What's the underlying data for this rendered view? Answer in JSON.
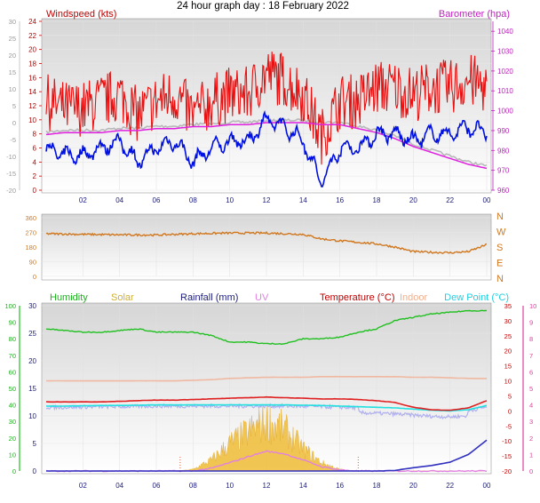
{
  "title": "24 hour graph day : 18 February 2022",
  "colors": {
    "wind": "#e81010",
    "gust": "#e81010",
    "wind_avg": "#0010e0",
    "barometer": "#e020e0",
    "bar_raw": "#b8b8b8",
    "direction": "#d07820",
    "humidity": "#20c020",
    "solar": "#f0c040",
    "rainfall": "#3030c0",
    "uv": "#e080e0",
    "temperature": "#e02020",
    "indoor": "#f0b8a0",
    "dewpoint": "#20e0e0",
    "grey_series": "#b0b0f0",
    "left_axis_green": "#20c020",
    "right_axis_pink": "#e040a0",
    "direction_axis": "#d07820"
  },
  "panel1": {
    "left_label": "Windspeed (kts)",
    "right_label": "Barometer (hpa)",
    "outer_left_ticks": [
      "30",
      "25",
      "20",
      "15",
      "10",
      "5",
      "0",
      "-5",
      "-10",
      "-15",
      "-20"
    ],
    "left_ticks": [
      "24",
      "22",
      "20",
      "18",
      "16",
      "14",
      "12",
      "10",
      "8",
      "6",
      "4",
      "2",
      "0"
    ],
    "right_ticks": [
      "1040",
      "1030",
      "1020",
      "1010",
      "1000",
      "990",
      "980",
      "970",
      "960"
    ],
    "x_ticks": [
      "02",
      "04",
      "06",
      "08",
      "10",
      "12",
      "14",
      "16",
      "18",
      "20",
      "22",
      "00"
    ]
  },
  "panel2": {
    "left_ticks": [
      "360",
      "270",
      "180",
      "90",
      "0"
    ],
    "right_ticks": [
      "N",
      "W",
      "S",
      "E",
      "N"
    ],
    "x_ticks": []
  },
  "panel3": {
    "legend": {
      "humidity": "Humidity",
      "solar": "Solar",
      "rainfall": "Rainfall (mm)",
      "uv": "UV",
      "temperature": "Temperature (°C)",
      "indoor": "Indoor",
      "dewpoint": "Dew Point (°C)"
    },
    "outer_left_ticks": [
      "100",
      "90",
      "80",
      "70",
      "60",
      "50",
      "40",
      "30",
      "20",
      "10",
      "0"
    ],
    "left_ticks": [
      "30",
      "25",
      "20",
      "15",
      "10",
      "5",
      "0"
    ],
    "right_ticks": [
      "35",
      "30",
      "25",
      "20",
      "15",
      "10",
      "5",
      "0",
      "-5",
      "-10",
      "-15",
      "-20"
    ],
    "far_right_ticks": [
      "10",
      "9",
      "8",
      "7",
      "6",
      "5",
      "4",
      "3",
      "2",
      "1",
      "0"
    ],
    "x_ticks": [
      "02",
      "04",
      "06",
      "08",
      "10",
      "12",
      "14",
      "16",
      "18",
      "20",
      "22",
      "00"
    ]
  },
  "chart_data": [
    {
      "type": "line",
      "x_hours": [
        0,
        1,
        2,
        3,
        4,
        5,
        6,
        7,
        8,
        9,
        10,
        11,
        12,
        13,
        14,
        15,
        16,
        17,
        18,
        19,
        20,
        21,
        22,
        23,
        24
      ],
      "series": [
        {
          "name": "Windspeed",
          "unit": "kts",
          "values": [
            9,
            8,
            8,
            9,
            10,
            7,
            9,
            10,
            7,
            9,
            10,
            10,
            13,
            12,
            10,
            4,
            9,
            9,
            11,
            11,
            10,
            11,
            11,
            12,
            11
          ]
        },
        {
          "name": "Barometer",
          "unit": "hpa",
          "values": [
            988,
            989,
            989,
            989,
            990,
            990,
            991,
            991,
            992,
            992,
            993,
            993,
            994,
            994,
            994,
            993,
            993,
            991,
            989,
            986,
            982,
            979,
            976,
            973,
            971
          ]
        }
      ],
      "xlim": [
        0,
        24
      ],
      "left_ylim": [
        0,
        24
      ],
      "right_ylim": [
        960,
        1045
      ]
    },
    {
      "type": "line",
      "x_hours": [
        0,
        2,
        4,
        6,
        8,
        10,
        12,
        14,
        15,
        16,
        18,
        19,
        20,
        21,
        22,
        23,
        24
      ],
      "series": [
        {
          "name": "Direction",
          "unit": "deg",
          "values": [
            262,
            258,
            255,
            254,
            262,
            266,
            266,
            258,
            230,
            218,
            200,
            180,
            152,
            148,
            145,
            152,
            195
          ]
        }
      ],
      "xlim": [
        0,
        24
      ],
      "ylim": [
        0,
        360
      ]
    },
    {
      "type": "line",
      "x_hours": [
        0,
        1,
        2,
        3,
        4,
        5,
        6,
        7,
        8,
        9,
        10,
        11,
        12,
        13,
        14,
        15,
        16,
        17,
        18,
        19,
        20,
        21,
        22,
        23,
        24
      ],
      "series": [
        {
          "name": "Humidity",
          "unit": "%",
          "values": [
            86,
            85,
            84,
            84,
            85,
            86,
            84,
            84,
            84,
            82,
            78,
            78,
            77,
            77,
            80,
            80,
            81,
            84,
            86,
            91,
            93,
            95,
            96,
            97,
            97
          ]
        },
        {
          "name": "Temperature",
          "unit": "°C",
          "values": [
            3.0,
            3.0,
            3.0,
            3.0,
            3.2,
            3.4,
            3.6,
            3.6,
            3.8,
            4.0,
            4.2,
            4.4,
            4.6,
            4.4,
            4.2,
            4.0,
            4.0,
            3.8,
            3.4,
            2.8,
            1.2,
            0.4,
            0.2,
            1.0,
            3.4
          ]
        },
        {
          "name": "Dew Point",
          "unit": "°C",
          "values": [
            1.6,
            1.6,
            1.7,
            1.8,
            1.8,
            1.9,
            2.0,
            2.0,
            2.0,
            2.0,
            2.0,
            2.0,
            2.0,
            2.0,
            1.9,
            1.8,
            1.6,
            1.4,
            1.2,
            1.0,
            0.6,
            0.2,
            0.0,
            0.4,
            1.8
          ]
        },
        {
          "name": "Indoor",
          "unit": "°C",
          "values": [
            10.0,
            10.0,
            10.0,
            10.0,
            10.0,
            10.0,
            10.0,
            10.0,
            10.2,
            10.4,
            10.8,
            11.0,
            11.2,
            11.2,
            11.2,
            11.4,
            11.4,
            11.4,
            11.4,
            11.4,
            11.2,
            11.2,
            11.0,
            10.8,
            10.8
          ]
        },
        {
          "name": "Rainfall",
          "unit": "mm",
          "values": [
            0,
            0,
            0,
            0,
            0,
            0,
            0,
            0,
            0,
            0,
            0,
            0,
            0,
            0,
            0,
            0,
            0,
            0,
            0,
            0.1,
            0.6,
            1.0,
            1.6,
            3.0,
            5.6
          ]
        },
        {
          "name": "Solar",
          "unit": "scale 0-30",
          "values": [
            0,
            0,
            0,
            0,
            0,
            0,
            0,
            0,
            0.3,
            2,
            5,
            7,
            9,
            7.5,
            4,
            1.5,
            0.3,
            0,
            0,
            0,
            0,
            0,
            0,
            0,
            0
          ]
        },
        {
          "name": "UV",
          "unit": "scale 0-30",
          "values": [
            0,
            0,
            0,
            0,
            0,
            0,
            0,
            0,
            0,
            0.5,
            1.5,
            2.6,
            3.6,
            3.1,
            2.0,
            0.8,
            0.2,
            0,
            0,
            0,
            0,
            0,
            0,
            0,
            0
          ]
        }
      ],
      "xlim": [
        0,
        24
      ],
      "left_ylim": [
        0,
        30
      ],
      "humidity_ylim": [
        0,
        100
      ],
      "temperature_ylim": [
        -20,
        35
      ]
    }
  ]
}
